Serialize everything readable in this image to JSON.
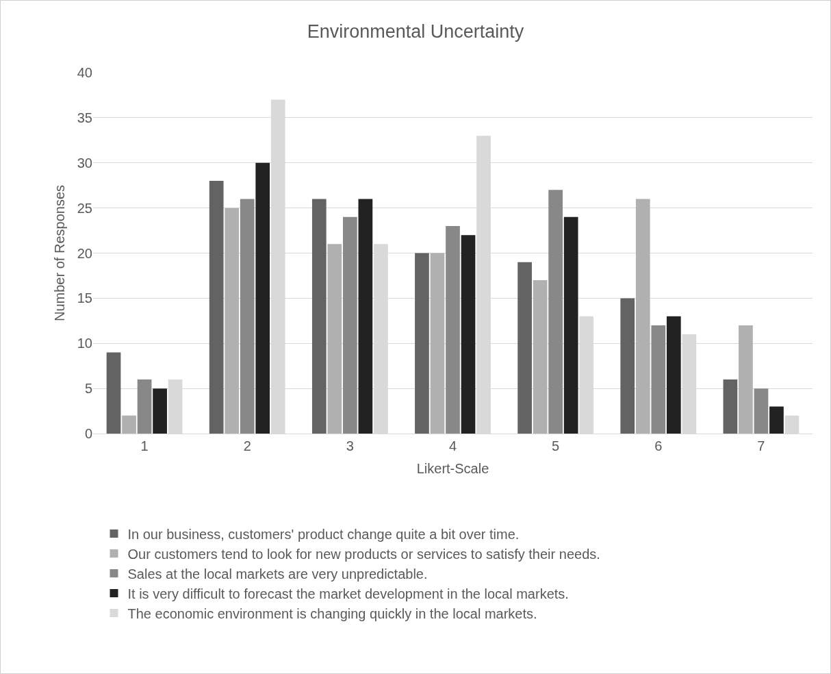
{
  "chart_data": {
    "type": "bar",
    "title": "Environmental Uncertainty",
    "xlabel": "Likert-Scale",
    "ylabel": "Number of Responses",
    "categories": [
      "1",
      "2",
      "3",
      "4",
      "5",
      "6",
      "7"
    ],
    "series": [
      {
        "name": "In our business, customers' product change quite a bit over time.",
        "color": "#636363",
        "values": [
          9,
          28,
          26,
          20,
          19,
          15,
          6
        ]
      },
      {
        "name": "Our customers tend to look for new products or services to satisfy their needs.",
        "color": "#b0b0b0",
        "values": [
          2,
          25,
          21,
          20,
          17,
          26,
          12
        ]
      },
      {
        "name": "Sales at the local markets are very unpredictable.",
        "color": "#888888",
        "values": [
          6,
          26,
          24,
          23,
          27,
          12,
          5
        ]
      },
      {
        "name": "It is very difficult to forecast the market development in the local markets.",
        "color": "#222222",
        "values": [
          5,
          30,
          26,
          22,
          24,
          13,
          3
        ]
      },
      {
        "name": "The economic environment is changing quickly in the local markets.",
        "color": "#d9d9d9",
        "values": [
          6,
          37,
          21,
          33,
          13,
          11,
          2
        ]
      }
    ],
    "ylim": [
      0,
      40
    ],
    "yticks": [
      0,
      5,
      10,
      15,
      20,
      25,
      30,
      35,
      40
    ],
    "grid": "y",
    "legend": "bottom"
  }
}
